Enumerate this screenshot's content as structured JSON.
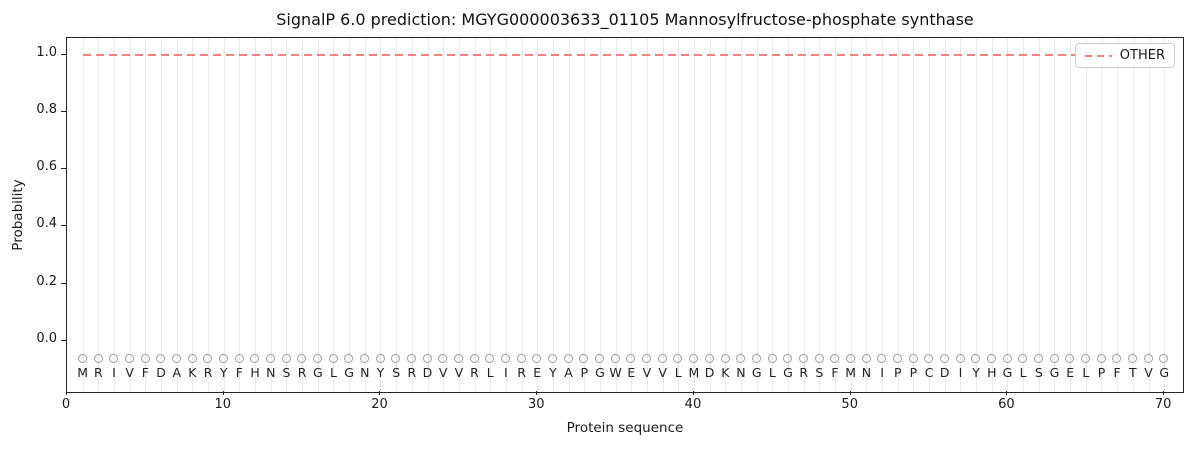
{
  "chart_data": {
    "type": "line",
    "title": "SignalP 6.0 prediction: MGYG000003633_01105 Mannosylfructose-phosphate synthase",
    "xlabel": "Protein sequence",
    "ylabel": "Probability",
    "xlim": [
      0,
      71.2
    ],
    "ylim": [
      -0.18,
      1.06
    ],
    "x_ticks": [
      0,
      10,
      20,
      30,
      40,
      50,
      60,
      70
    ],
    "y_ticks": [
      0.0,
      0.2,
      0.4,
      0.6,
      0.8,
      1.0
    ],
    "grid": {
      "vertical_per_residue": true,
      "horizontal": false,
      "color": "#e9e9e9"
    },
    "legend": {
      "position": "upper right",
      "entries": [
        {
          "label": "OTHER",
          "color": "#f48080",
          "linestyle": "dashed"
        }
      ]
    },
    "series": [
      {
        "name": "OTHER",
        "color": "#f48080",
        "linestyle": "dashed",
        "x_start": 1,
        "x_end": 70,
        "constant_y": 1.0
      }
    ],
    "sequence": [
      "M",
      "R",
      "I",
      "V",
      "F",
      "D",
      "A",
      "K",
      "R",
      "Y",
      "F",
      "H",
      "N",
      "S",
      "R",
      "G",
      "L",
      "G",
      "N",
      "Y",
      "S",
      "R",
      "D",
      "V",
      "V",
      "R",
      "L",
      "I",
      "R",
      "E",
      "Y",
      "A",
      "P",
      "G",
      "W",
      "E",
      "V",
      "V",
      "L",
      "M",
      "D",
      "K",
      "N",
      "G",
      "L",
      "G",
      "R",
      "S",
      "F",
      "M",
      "N",
      "I",
      "P",
      "P",
      "C",
      "D",
      "I",
      "Y",
      "H",
      "G",
      "L",
      "S",
      "G",
      "E",
      "L",
      "P",
      "F",
      "T",
      "V",
      "G"
    ],
    "residue_marker": {
      "symbol": "circle-open",
      "color": "#9e9e9e",
      "y": -0.062
    },
    "sequence_label_y": -0.115
  }
}
